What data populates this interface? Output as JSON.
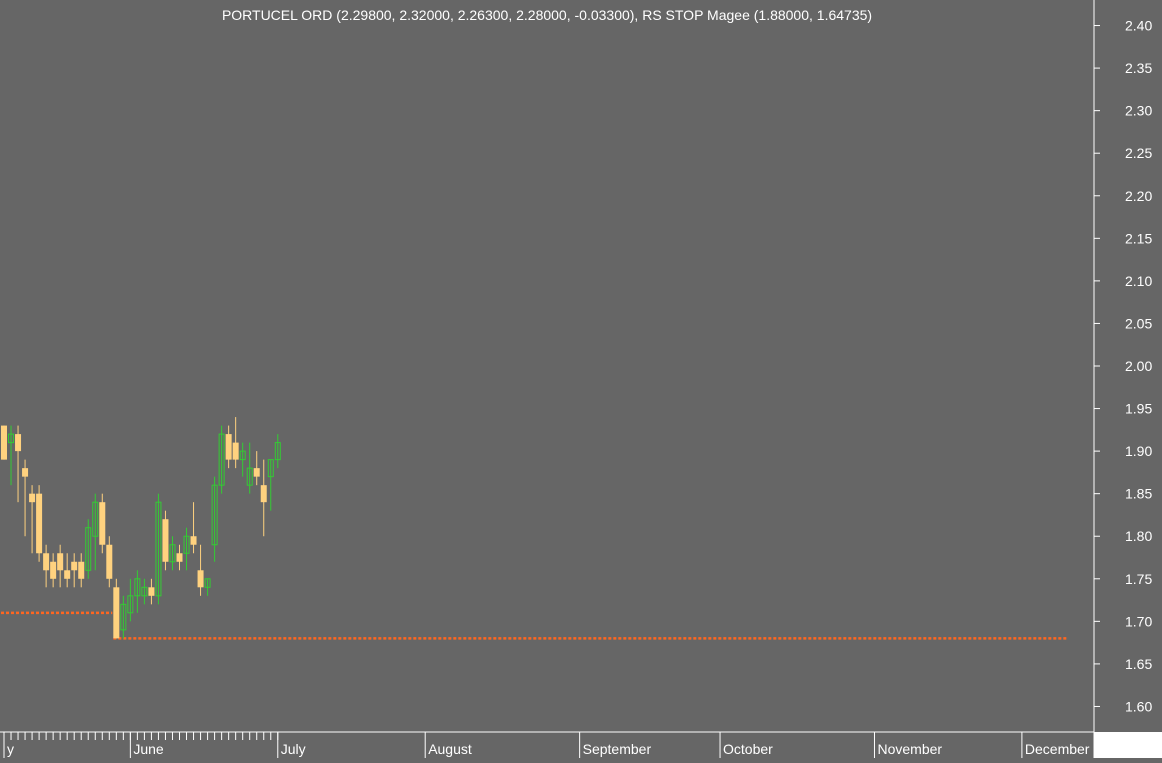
{
  "chart_data": {
    "type": "candlestick",
    "title": "PORTUCEL ORD (2.29800, 2.32000, 2.26300, 2.28000, -0.03300), RS STOP Magee (1.88000, 1.64735)",
    "ylim": [
      1.57,
      2.43
    ],
    "y_ticks": [
      "2.40",
      "2.35",
      "2.30",
      "2.25",
      "2.20",
      "2.15",
      "2.10",
      "2.05",
      "2.00",
      "1.95",
      "1.90",
      "1.85",
      "1.80",
      "1.75",
      "1.70",
      "1.65",
      "1.60"
    ],
    "x_ticks": [
      {
        "label": "y",
        "bar": 0
      },
      {
        "label": "June",
        "bar": 18
      },
      {
        "label": "July",
        "bar": 39
      },
      {
        "label": "August",
        "bar": 60
      },
      {
        "label": "September",
        "bar": 82
      },
      {
        "label": "October",
        "bar": 102
      },
      {
        "label": "November",
        "bar": 124
      },
      {
        "label": "December",
        "bar": 145
      }
    ],
    "colors": {
      "background": "#666666",
      "up": "#33cc33",
      "down": "#ffd27f",
      "stop": "#ff6620",
      "indicator": "#ffffff",
      "text": "#ffffff",
      "axis_panel": "#ffffff"
    },
    "series": [
      {
        "name": "PORTUCEL ORD",
        "ohlc": [
          [
            1.93,
            1.93,
            1.89,
            1.89
          ],
          [
            1.91,
            1.93,
            1.86,
            1.92
          ],
          [
            1.92,
            1.93,
            1.84,
            1.9
          ],
          [
            1.88,
            1.89,
            1.8,
            1.87
          ],
          [
            1.85,
            1.86,
            1.78,
            1.84
          ],
          [
            1.85,
            1.86,
            1.77,
            1.78
          ],
          [
            1.78,
            1.79,
            1.74,
            1.76
          ],
          [
            1.77,
            1.78,
            1.74,
            1.75
          ],
          [
            1.78,
            1.79,
            1.74,
            1.76
          ],
          [
            1.76,
            1.78,
            1.74,
            1.75
          ],
          [
            1.77,
            1.78,
            1.74,
            1.76
          ],
          [
            1.77,
            1.78,
            1.74,
            1.75
          ],
          [
            1.76,
            1.82,
            1.75,
            1.81
          ],
          [
            1.8,
            1.85,
            1.76,
            1.84
          ],
          [
            1.84,
            1.85,
            1.78,
            1.79
          ],
          [
            1.79,
            1.8,
            1.74,
            1.75
          ],
          [
            1.74,
            1.75,
            1.68,
            1.68
          ],
          [
            1.69,
            1.73,
            1.68,
            1.72
          ],
          [
            1.71,
            1.75,
            1.7,
            1.73
          ],
          [
            1.73,
            1.76,
            1.71,
            1.75
          ],
          [
            1.73,
            1.75,
            1.72,
            1.74
          ],
          [
            1.74,
            1.75,
            1.72,
            1.73
          ],
          [
            1.73,
            1.85,
            1.72,
            1.84
          ],
          [
            1.82,
            1.83,
            1.76,
            1.77
          ],
          [
            1.77,
            1.8,
            1.76,
            1.79
          ],
          [
            1.78,
            1.79,
            1.76,
            1.77
          ],
          [
            1.78,
            1.81,
            1.76,
            1.8
          ],
          [
            1.8,
            1.84,
            1.78,
            1.79
          ],
          [
            1.76,
            1.79,
            1.73,
            1.74
          ],
          [
            1.74,
            1.75,
            1.73,
            1.75
          ],
          [
            1.79,
            1.87,
            1.77,
            1.86
          ],
          [
            1.86,
            1.93,
            1.85,
            1.92
          ],
          [
            1.92,
            1.93,
            1.88,
            1.89
          ],
          [
            1.91,
            1.94,
            1.88,
            1.89
          ],
          [
            1.89,
            1.91,
            1.87,
            1.9
          ],
          [
            1.86,
            1.91,
            1.85,
            1.88
          ],
          [
            1.88,
            1.9,
            1.86,
            1.87
          ],
          [
            1.86,
            1.89,
            1.8,
            1.84
          ],
          [
            1.87,
            1.89,
            1.83,
            1.89
          ],
          [
            1.89,
            1.92,
            1.88,
            1.91
          ]
        ]
      },
      {
        "name": "RS STOP Magee",
        "values": [
          1.71,
          1.71,
          1.71,
          1.71,
          1.71,
          1.71,
          1.71,
          1.71,
          1.71,
          1.71,
          1.71,
          1.71,
          1.71,
          1.71,
          1.71,
          1.71,
          1.68,
          1.68,
          1.68,
          1.68,
          1.68,
          1.68,
          1.68,
          1.68,
          1.68,
          1.68,
          1.68,
          1.68,
          1.68,
          1.68,
          1.68,
          1.68,
          1.68,
          1.68,
          1.68,
          1.68,
          1.68,
          1.68,
          1.68,
          1.68,
          1.68,
          1.68,
          1.68,
          1.68,
          1.68,
          1.68,
          1.68,
          1.68,
          1.68,
          1.68,
          1.68,
          1.68,
          1.68,
          1.68,
          1.68,
          1.68,
          1.68,
          1.68,
          1.68,
          1.68,
          1.68,
          1.68,
          1.68,
          1.68,
          1.68,
          1.68,
          1.68,
          1.68,
          1.68,
          1.68,
          1.68,
          1.68,
          1.68,
          1.68,
          1.68,
          1.68,
          1.68,
          1.68,
          1.68,
          1.68,
          1.68,
          1.68,
          1.68,
          1.68,
          1.68,
          1.68,
          1.68,
          1.68,
          1.68,
          1.68,
          1.68,
          1.68,
          1.68,
          1.68,
          1.68,
          1.68,
          1.68,
          1.68,
          1.68,
          1.68,
          1.68,
          1.68,
          1.68,
          1.68,
          1.68,
          1.68,
          1.68,
          1.68,
          1.68,
          1.68,
          1.68,
          1.68,
          1.68,
          1.68,
          1.68,
          1.68,
          1.68,
          1.68,
          1.68,
          1.68,
          1.68,
          1.68,
          1.68,
          1.68,
          1.68,
          1.68,
          1.68,
          1.68,
          1.68,
          1.68,
          1.68,
          1.68,
          1.68,
          1.68,
          1.68,
          1.68,
          1.68,
          1.68,
          1.68,
          1.68,
          1.68,
          1.68,
          1.68,
          1.68,
          1.68,
          1.68,
          1.68,
          1.68,
          1.68,
          1.68,
          1.68,
          1.68
        ]
      }
    ]
  }
}
